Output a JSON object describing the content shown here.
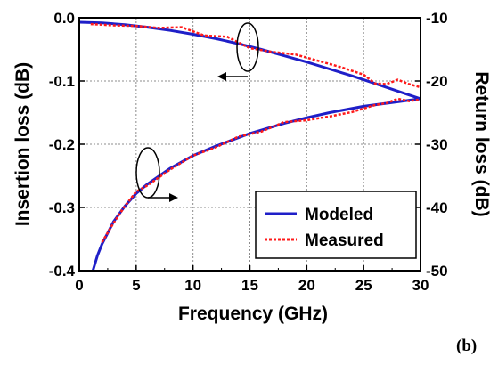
{
  "panel_label": "(b)",
  "chart_data": {
    "type": "line",
    "xlabel": "Frequency (GHz)",
    "ylabel_left": "Insertion loss (dB)",
    "ylabel_right": "Return loss (dB)",
    "xlim": [
      0,
      30
    ],
    "ylim_left": [
      -0.4,
      0.0
    ],
    "ylim_right": [
      -50,
      -10
    ],
    "x_ticks": [
      "0",
      "5",
      "10",
      "15",
      "20",
      "25",
      "30"
    ],
    "y_left_ticks": [
      "0.0",
      "-0.1",
      "-0.2",
      "-0.3",
      "-0.4"
    ],
    "y_right_ticks": [
      "-10",
      "-20",
      "-30",
      "-40",
      "-50"
    ],
    "grid": true,
    "legend": {
      "placement": "bottom-right",
      "entries": [
        "Modeled",
        "Measured"
      ]
    },
    "colors": {
      "modeled": "#1f1fc8",
      "measured": "#ff1a1a"
    },
    "series": [
      {
        "name": "Modeled",
        "curve": "insertion loss",
        "axis": "left",
        "x": [
          0,
          2,
          4,
          6,
          8,
          10,
          12,
          14,
          16,
          18,
          20,
          22,
          24,
          26,
          28,
          30
        ],
        "y": [
          -0.007,
          -0.008,
          -0.011,
          -0.015,
          -0.02,
          -0.026,
          -0.033,
          -0.041,
          -0.05,
          -0.06,
          -0.07,
          -0.081,
          -0.092,
          -0.104,
          -0.116,
          -0.128
        ]
      },
      {
        "name": "Measured",
        "curve": "insertion loss",
        "axis": "left",
        "x": [
          1,
          3,
          5,
          7,
          9,
          11,
          13,
          15,
          17,
          19,
          21,
          23,
          25,
          26,
          27,
          28,
          29,
          30
        ],
        "y": [
          -0.01,
          -0.012,
          -0.013,
          -0.016,
          -0.015,
          -0.028,
          -0.03,
          -0.048,
          -0.054,
          -0.058,
          -0.068,
          -0.078,
          -0.09,
          -0.104,
          -0.105,
          -0.098,
          -0.105,
          -0.11
        ]
      },
      {
        "name": "Modeled",
        "curve": "return loss",
        "axis": "right",
        "x": [
          1.2,
          1.6,
          2,
          3,
          4,
          5,
          6,
          8,
          10,
          12,
          15,
          18,
          20,
          22,
          25,
          28,
          30
        ],
        "y": [
          -50,
          -47.6,
          -45.8,
          -42.3,
          -39.8,
          -37.8,
          -36.3,
          -33.8,
          -31.8,
          -30.3,
          -28.3,
          -26.7,
          -25.8,
          -25,
          -24,
          -23.3,
          -22.8
        ]
      },
      {
        "name": "Measured",
        "curve": "return loss",
        "axis": "right",
        "x": [
          2,
          3,
          4,
          5,
          6,
          8,
          10,
          12,
          14,
          16,
          18,
          20,
          22,
          24,
          26,
          27,
          28,
          29,
          30
        ],
        "y": [
          -45.5,
          -42.5,
          -39.8,
          -37.5,
          -36.5,
          -34,
          -31.8,
          -30.5,
          -28.8,
          -28,
          -26.5,
          -26.2,
          -25.6,
          -24.9,
          -23.8,
          -23.5,
          -22.8,
          -23.2,
          -22.9
        ]
      }
    ]
  }
}
